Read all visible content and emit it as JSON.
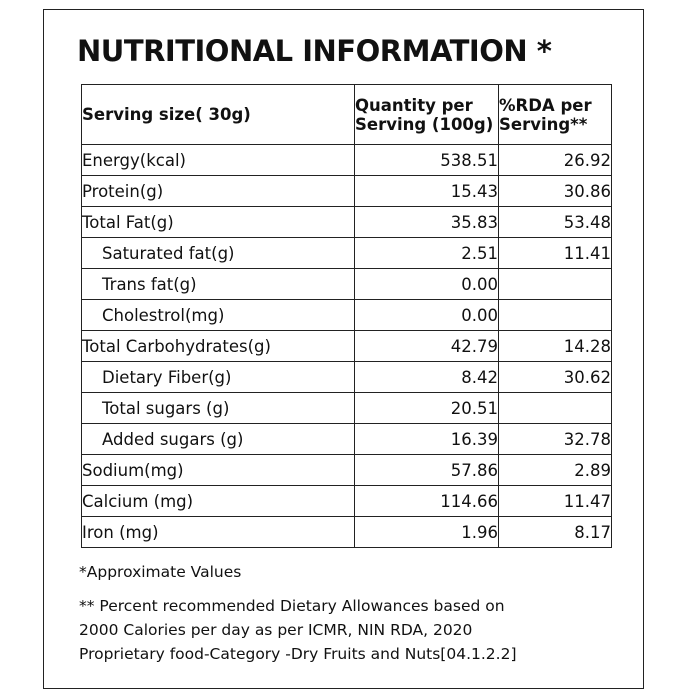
{
  "title": "NUTRITIONAL INFORMATION *",
  "headers": {
    "serving": "Serving size( 30g)",
    "qty_line1": "Quantity per",
    "qty_line2": "Serving (100g)",
    "rda_line1": "%RDA per",
    "rda_line2": "Serving**"
  },
  "rows": [
    {
      "name": "Energy(kcal)",
      "qty": "538.51",
      "rda": "26.92"
    },
    {
      "name": "Protein(g)",
      "qty": "15.43",
      "rda": "30.86"
    },
    {
      "name": "Total Fat(g)",
      "qty": "35.83",
      "rda": "53.48"
    },
    {
      "name": "Saturated fat(g)",
      "qty": "2.51",
      "rda": "11.41"
    },
    {
      "name": "Trans fat(g)",
      "qty": "0.00",
      "rda": ""
    },
    {
      "name": "Cholestrol(mg)",
      "qty": "0.00",
      "rda": ""
    },
    {
      "name": "Total Carbohydrates(g)",
      "qty": "42.79",
      "rda": "14.28"
    },
    {
      "name": "Dietary Fiber(g)",
      "qty": "8.42",
      "rda": "30.62"
    },
    {
      "name": "Total sugars (g)",
      "qty": "20.51",
      "rda": ""
    },
    {
      "name": "Added sugars (g)",
      "qty": "16.39",
      "rda": "32.78"
    },
    {
      "name": "Sodium(mg)",
      "qty": "57.86",
      "rda": "2.89"
    },
    {
      "name": "Calcium (mg)",
      "qty": "114.66",
      "rda": "11.47"
    },
    {
      "name": "Iron (mg)",
      "qty": "1.96",
      "rda": "8.17"
    }
  ],
  "notes": {
    "approx": "*Approximate Values",
    "rda_line1": "** Percent recommended Dietary Allowances based on",
    "rda_line2": "2000 Calories per day as per ICMR, NIN RDA, 2020",
    "category": "Proprietary food-Category -Dry Fruits and Nuts[04.1.2.2]"
  }
}
